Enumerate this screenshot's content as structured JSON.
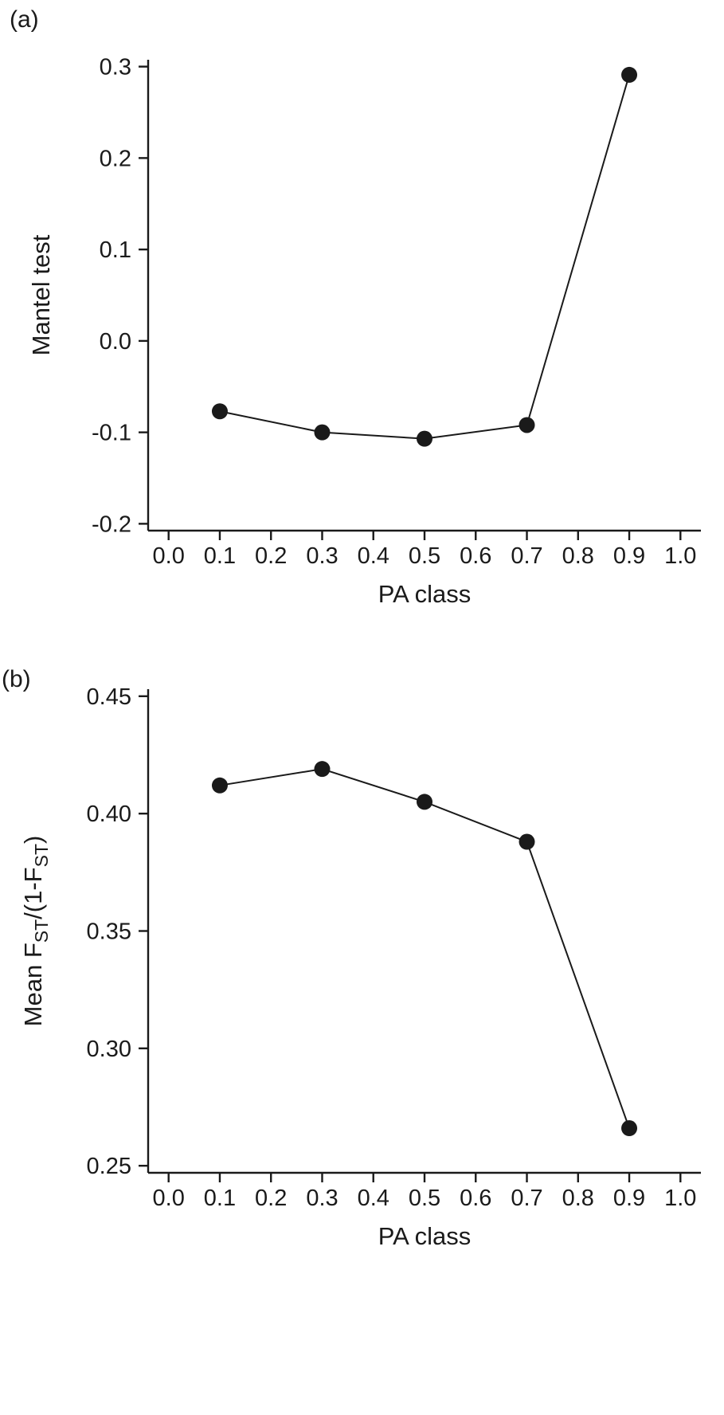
{
  "figure": {
    "background_color": "#ffffff",
    "ink_color": "#1a1a1a",
    "panel_labels": [
      "(a)",
      "(b)"
    ]
  },
  "chart_data": [
    {
      "panel_label": "(a)",
      "type": "line",
      "x": [
        0.1,
        0.3,
        0.5,
        0.7,
        0.9
      ],
      "values": [
        -0.077,
        -0.1,
        -0.107,
        -0.092,
        0.291
      ],
      "title": "",
      "xlabel": "PA class",
      "ylabel": "Mantel test",
      "ylabel_parts": [
        {
          "text": "Mantel test",
          "sub": false
        }
      ],
      "xlim": [
        0.0,
        1.0
      ],
      "ylim": [
        -0.2,
        0.3
      ],
      "xticks": [
        {
          "v": 0.0,
          "label": "0.0"
        },
        {
          "v": 0.1,
          "label": "0.1"
        },
        {
          "v": 0.2,
          "label": "0.2"
        },
        {
          "v": 0.3,
          "label": "0.3"
        },
        {
          "v": 0.4,
          "label": "0.4"
        },
        {
          "v": 0.5,
          "label": "0.5"
        },
        {
          "v": 0.6,
          "label": "0.6"
        },
        {
          "v": 0.7,
          "label": "0.7"
        },
        {
          "v": 0.8,
          "label": "0.8"
        },
        {
          "v": 0.9,
          "label": "0.9"
        },
        {
          "v": 1.0,
          "label": "1.0"
        }
      ],
      "yticks": [
        {
          "v": 0.3,
          "label": "0.3"
        },
        {
          "v": 0.2,
          "label": "0.2"
        },
        {
          "v": 0.1,
          "label": "0.1"
        },
        {
          "v": 0.0,
          "label": "0.0"
        },
        {
          "v": -0.1,
          "label": "-0.1"
        },
        {
          "v": -0.2,
          "label": "-0.2"
        }
      ],
      "marker": "filled-circle",
      "line_style": "solid",
      "line_color": "#1a1a1a",
      "grid": false,
      "legend": "none"
    },
    {
      "panel_label": "(b)",
      "type": "line",
      "x": [
        0.1,
        0.3,
        0.5,
        0.7,
        0.9
      ],
      "values": [
        0.412,
        0.419,
        0.405,
        0.388,
        0.266
      ],
      "title": "",
      "xlabel": "PA class",
      "ylabel": "Mean FST/(1-FST)",
      "ylabel_parts": [
        {
          "text": "Mean F",
          "sub": false
        },
        {
          "text": "ST",
          "sub": true
        },
        {
          "text": "/(1-F",
          "sub": false
        },
        {
          "text": "ST",
          "sub": true
        },
        {
          "text": ")",
          "sub": false
        }
      ],
      "xlim": [
        0.0,
        1.0
      ],
      "ylim": [
        0.25,
        0.45
      ],
      "xticks": [
        {
          "v": 0.0,
          "label": "0.0"
        },
        {
          "v": 0.1,
          "label": "0.1"
        },
        {
          "v": 0.2,
          "label": "0.2"
        },
        {
          "v": 0.3,
          "label": "0.3"
        },
        {
          "v": 0.4,
          "label": "0.4"
        },
        {
          "v": 0.5,
          "label": "0.5"
        },
        {
          "v": 0.6,
          "label": "0.6"
        },
        {
          "v": 0.7,
          "label": "0.7"
        },
        {
          "v": 0.8,
          "label": "0.8"
        },
        {
          "v": 0.9,
          "label": "0.9"
        },
        {
          "v": 1.0,
          "label": "1.0"
        }
      ],
      "yticks": [
        {
          "v": 0.45,
          "label": "0.45"
        },
        {
          "v": 0.4,
          "label": "0.40"
        },
        {
          "v": 0.35,
          "label": "0.35"
        },
        {
          "v": 0.3,
          "label": "0.30"
        },
        {
          "v": 0.25,
          "label": "0.25"
        }
      ],
      "marker": "filled-circle",
      "line_style": "solid",
      "line_color": "#1a1a1a",
      "grid": false,
      "legend": "none"
    }
  ]
}
